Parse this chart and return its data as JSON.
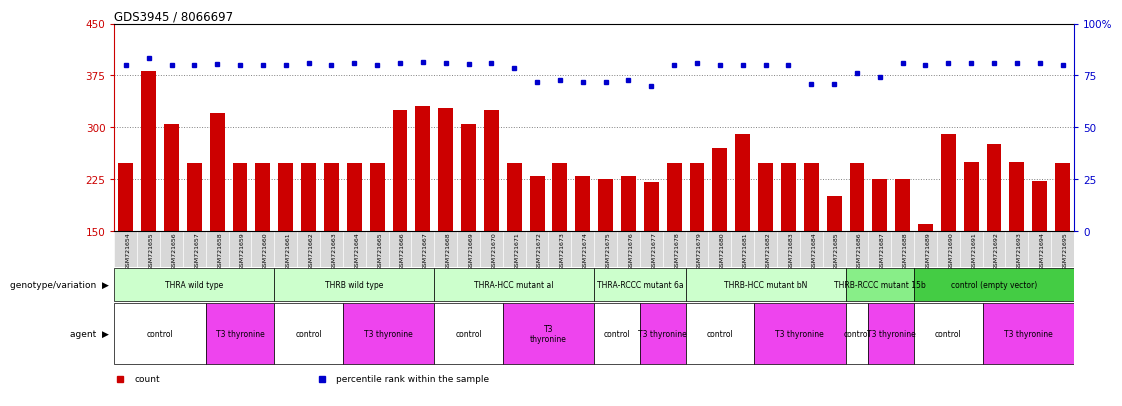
{
  "title": "GDS3945 / 8066697",
  "samples": [
    "GSM721654",
    "GSM721655",
    "GSM721656",
    "GSM721657",
    "GSM721658",
    "GSM721659",
    "GSM721660",
    "GSM721661",
    "GSM721662",
    "GSM721663",
    "GSM721664",
    "GSM721665",
    "GSM721666",
    "GSM721667",
    "GSM721668",
    "GSM721669",
    "GSM721670",
    "GSM721671",
    "GSM721672",
    "GSM721673",
    "GSM721674",
    "GSM721675",
    "GSM721676",
    "GSM721677",
    "GSM721678",
    "GSM721679",
    "GSM721680",
    "GSM721681",
    "GSM721682",
    "GSM721683",
    "GSM721684",
    "GSM721685",
    "GSM721686",
    "GSM721687",
    "GSM721688",
    "GSM721689",
    "GSM721690",
    "GSM721691",
    "GSM721692",
    "GSM721693",
    "GSM721694",
    "GSM721695"
  ],
  "bar_values": [
    248,
    382,
    305,
    248,
    320,
    248,
    248,
    248,
    248,
    248,
    248,
    248,
    325,
    330,
    328,
    305,
    325,
    248,
    230,
    248,
    230,
    225,
    230,
    220,
    248,
    248,
    270,
    290,
    248,
    248,
    248,
    200,
    248,
    225,
    225,
    160,
    290,
    250,
    275,
    250,
    222,
    248
  ],
  "dot_values": [
    390,
    400,
    390,
    390,
    392,
    390,
    390,
    390,
    393,
    390,
    393,
    390,
    393,
    395,
    393,
    392,
    393,
    385,
    365,
    368,
    365,
    365,
    368,
    360,
    390,
    393,
    390,
    390,
    390,
    390,
    362,
    363,
    378,
    372,
    393,
    390,
    393,
    393,
    393,
    393,
    393,
    390
  ],
  "ylim_left": [
    150,
    450
  ],
  "ylim_right": [
    0,
    100
  ],
  "yticks_left": [
    150,
    225,
    300,
    375,
    450
  ],
  "yticks_right": [
    0,
    25,
    50,
    75,
    100
  ],
  "bar_color": "#cc0000",
  "dot_color": "#0000cc",
  "bg_color": "#ffffff",
  "sample_bg": "#d8d8d8",
  "genotype_groups": [
    {
      "label": "THRA wild type",
      "start": 0,
      "end": 7,
      "color": "#ccffcc"
    },
    {
      "label": "THRB wild type",
      "start": 7,
      "end": 14,
      "color": "#ccffcc"
    },
    {
      "label": "THRA-HCC mutant al",
      "start": 14,
      "end": 21,
      "color": "#ccffcc"
    },
    {
      "label": "THRA-RCCC mutant 6a",
      "start": 21,
      "end": 25,
      "color": "#ccffcc"
    },
    {
      "label": "THRB-HCC mutant bN",
      "start": 25,
      "end": 32,
      "color": "#ccffcc"
    },
    {
      "label": "THRB-RCCC mutant 15b",
      "start": 32,
      "end": 35,
      "color": "#88ee88"
    },
    {
      "label": "control (empty vector)",
      "start": 35,
      "end": 42,
      "color": "#44cc44"
    }
  ],
  "agent_groups": [
    {
      "label": "control",
      "start": 0,
      "end": 4,
      "color": "#ffffff"
    },
    {
      "label": "T3 thyronine",
      "start": 4,
      "end": 7,
      "color": "#ee44ee"
    },
    {
      "label": "control",
      "start": 7,
      "end": 10,
      "color": "#ffffff"
    },
    {
      "label": "T3 thyronine",
      "start": 10,
      "end": 14,
      "color": "#ee44ee"
    },
    {
      "label": "control",
      "start": 14,
      "end": 17,
      "color": "#ffffff"
    },
    {
      "label": "T3\nthyronine",
      "start": 17,
      "end": 21,
      "color": "#ee44ee"
    },
    {
      "label": "control",
      "start": 21,
      "end": 23,
      "color": "#ffffff"
    },
    {
      "label": "T3 thyronine",
      "start": 23,
      "end": 25,
      "color": "#ee44ee"
    },
    {
      "label": "control",
      "start": 25,
      "end": 28,
      "color": "#ffffff"
    },
    {
      "label": "T3 thyronine",
      "start": 28,
      "end": 32,
      "color": "#ee44ee"
    },
    {
      "label": "control",
      "start": 32,
      "end": 33,
      "color": "#ffffff"
    },
    {
      "label": "T3 thyronine",
      "start": 33,
      "end": 35,
      "color": "#ee44ee"
    },
    {
      "label": "control",
      "start": 35,
      "end": 38,
      "color": "#ffffff"
    },
    {
      "label": "T3 thyronine",
      "start": 38,
      "end": 42,
      "color": "#ee44ee"
    }
  ],
  "legend_items": [
    {
      "label": "count",
      "color": "#cc0000",
      "marker": "s"
    },
    {
      "label": "percentile rank within the sample",
      "color": "#0000cc",
      "marker": "s"
    }
  ],
  "left_labels": [
    {
      "text": "genotype/variation",
      "row": "geno"
    },
    {
      "text": "agent",
      "row": "agent"
    }
  ]
}
